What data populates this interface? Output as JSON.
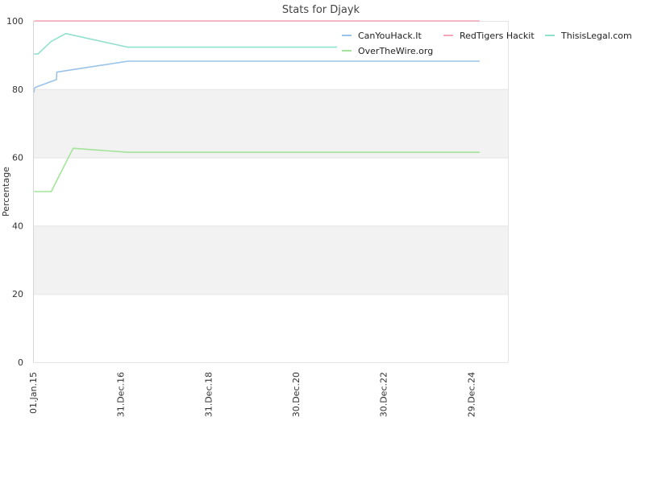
{
  "chart_data": {
    "type": "line",
    "title": "Stats for Djayk",
    "xlabel": "",
    "ylabel": "Percentage",
    "ylim": [
      0,
      100
    ],
    "yticks": [
      0,
      20,
      40,
      60,
      80,
      100
    ],
    "grid": "alternating horizontal bands",
    "legend_position": "top-right",
    "xticks": [
      {
        "date": "2015-01-01",
        "label": "01.Jan.15"
      },
      {
        "date": "2016-12-31",
        "label": "31.Dec.16"
      },
      {
        "date": "2018-12-31",
        "label": "31.Dec.18"
      },
      {
        "date": "2020-12-30",
        "label": "30.Dec.20"
      },
      {
        "date": "2022-12-30",
        "label": "30.Dec.22"
      },
      {
        "date": "2024-12-29",
        "label": "29.Dec.24"
      }
    ],
    "xlim": [
      "2015-01-01",
      "2025-11-01"
    ],
    "series": [
      {
        "name": "CanYouHack.It",
        "color": "#9ac3ea",
        "points": [
          [
            "2015-01-10",
            79
          ],
          [
            "2015-01-10",
            80.2
          ],
          [
            "2015-01-25",
            80.6
          ],
          [
            "2015-07-15",
            82.8
          ],
          [
            "2015-07-18",
            85
          ],
          [
            "2017-03-01",
            88.2
          ],
          [
            "2025-03-10",
            88.2
          ]
        ]
      },
      {
        "name": "RedTigers Hackit",
        "color": "#f2a7b8",
        "points": [
          [
            "2015-01-10",
            100
          ],
          [
            "2025-03-10",
            100
          ]
        ]
      },
      {
        "name": "ThisisLegal.com",
        "color": "#8fe0cf",
        "points": [
          [
            "2015-01-10",
            90.3
          ],
          [
            "2015-02-10",
            90.3
          ],
          [
            "2015-06-01",
            94
          ],
          [
            "2015-10-01",
            96.3
          ],
          [
            "2017-03-01",
            92.3
          ],
          [
            "2025-03-10",
            92.3
          ]
        ]
      },
      {
        "name": "OverTheWire.org",
        "color": "#a3e49a",
        "points": [
          [
            "2015-01-10",
            50
          ],
          [
            "2015-06-01",
            50
          ],
          [
            "2015-12-01",
            62.7
          ],
          [
            "2017-03-01",
            61.5
          ],
          [
            "2025-03-10",
            61.5
          ]
        ]
      }
    ]
  }
}
